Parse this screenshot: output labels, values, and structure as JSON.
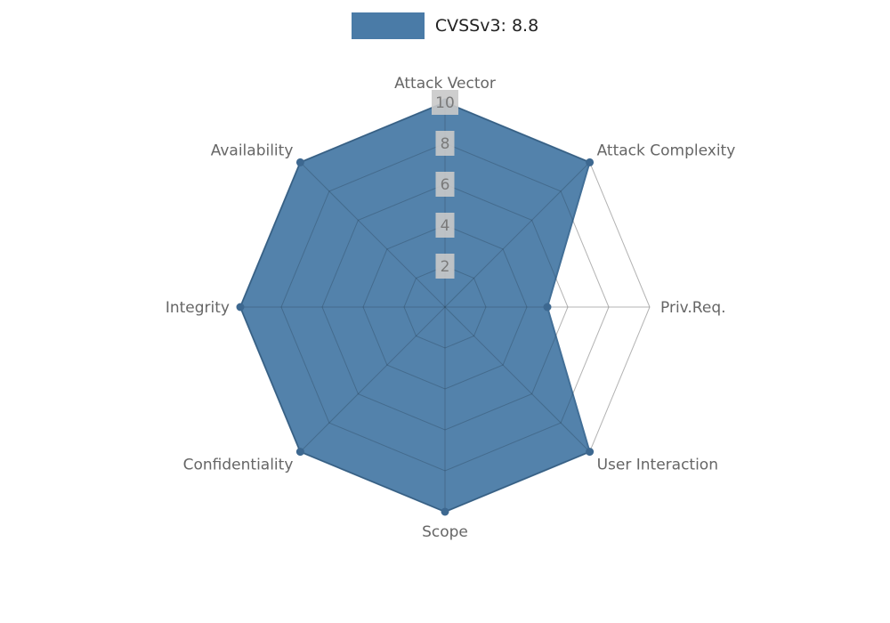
{
  "legend": {
    "label": "CVSSv3: 8.8"
  },
  "chart_data": {
    "type": "radar",
    "title": "CVSSv3: 8.8",
    "categories": [
      "Attack Vector",
      "Attack Complexity",
      "Priv.Req.",
      "User Interaction",
      "Scope",
      "Confidentiality",
      "Integrity",
      "Availability"
    ],
    "series": [
      {
        "name": "CVSSv3: 8.8",
        "values": [
          10,
          10,
          5,
          10,
          10,
          10,
          10,
          10
        ]
      }
    ],
    "max": 10,
    "ticks": [
      2,
      4,
      6,
      8,
      10
    ],
    "grid": true,
    "legend_position": "top-center",
    "colors": {
      "fill": "#4a7ba7",
      "stroke": "#426f97",
      "marker": "#3d6890",
      "grid_line": "rgba(0,0,0,0.16)",
      "tick_bg": "#c9c9c9",
      "tick_text": "#7a7a7a",
      "axis_label_text": "#666666"
    }
  }
}
